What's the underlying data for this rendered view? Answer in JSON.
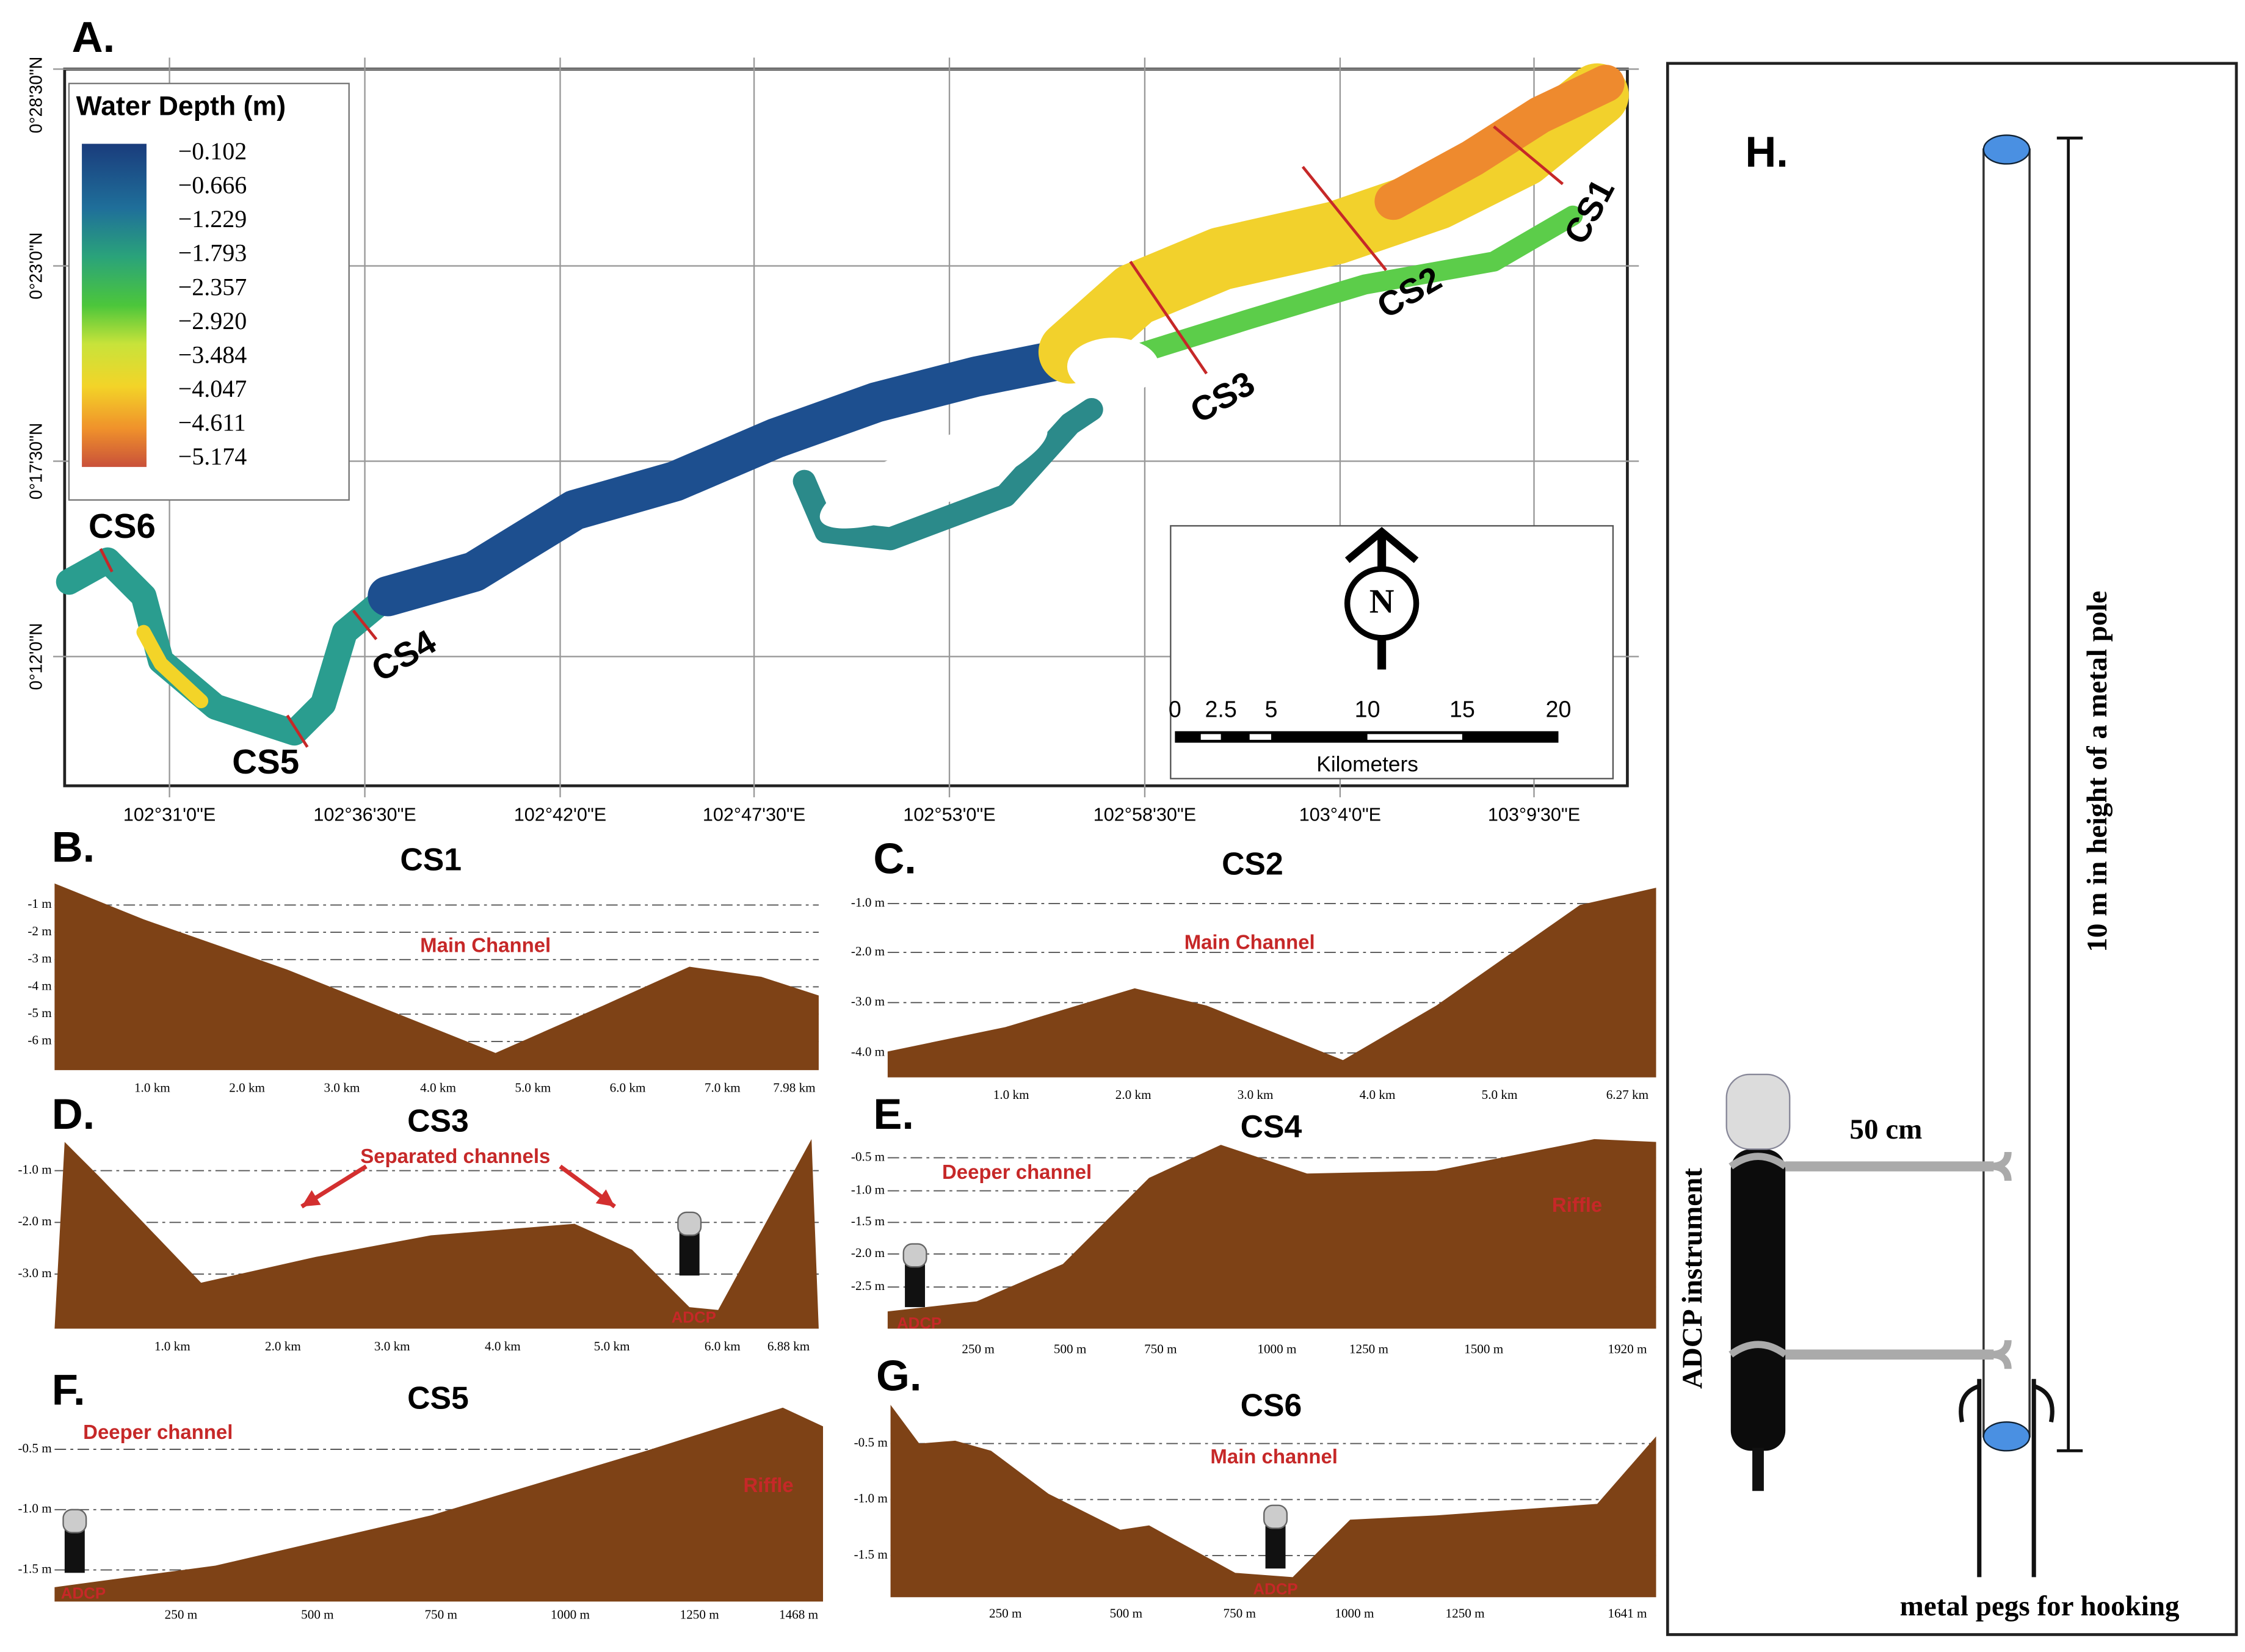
{
  "map": {
    "label": "A.",
    "legend_title": "Water Depth (m)",
    "legend_values": [
      "−0.102",
      "−0.666",
      "−1.229",
      "−1.793",
      "−2.357",
      "−2.920",
      "−3.484",
      "−4.047",
      "−4.611",
      "−5.174"
    ],
    "latitudes": [
      "0°28'30\"N",
      "0°23'0\"N",
      "0°17'30\"N",
      "0°12'0\"N"
    ],
    "longitudes": [
      "102°31'0\"E",
      "102°36'30\"E",
      "102°42'0\"E",
      "102°47'30\"E",
      "102°53'0\"E",
      "102°58'30\"E",
      "103°4'0\"E",
      "103°9'30\"E"
    ],
    "sections": [
      "CS1",
      "CS2",
      "CS3",
      "CS4",
      "CS5",
      "CS6"
    ],
    "north": "N",
    "scale_ticks": [
      "0",
      "2.5",
      "5",
      "10",
      "15",
      "20"
    ],
    "scale_unit": "Kilometers"
  },
  "profiles": [
    {
      "label": "B.",
      "title": "CS1",
      "yticks": [
        "-1 m",
        "-2 m",
        "-3 m",
        "-4 m",
        "-5 m",
        "-6 m"
      ],
      "xticks": [
        "1.0 km",
        "2.0 km",
        "3.0 km",
        "4.0 km",
        "5.0 km",
        "6.0 km",
        "7.0 km",
        "7.98 km"
      ],
      "annotations": [
        "Main Channel"
      ]
    },
    {
      "label": "C.",
      "title": "CS2",
      "yticks": [
        "-1.0 m",
        "-2.0 m",
        "-3.0 m",
        "-4.0 m"
      ],
      "xticks": [
        "1.0 km",
        "2.0 km",
        "3.0 km",
        "4.0 km",
        "5.0 km",
        "6.27 km"
      ],
      "annotations": [
        "Main Channel"
      ]
    },
    {
      "label": "D.",
      "title": "CS3",
      "yticks": [
        "-1.0 m",
        "-2.0 m",
        "-3.0 m"
      ],
      "xticks": [
        "1.0 km",
        "2.0 km",
        "3.0 km",
        "4.0 km",
        "5.0 km",
        "6.0 km",
        "6.88 km"
      ],
      "annotations": [
        "Separated channels",
        "ADCP"
      ]
    },
    {
      "label": "E.",
      "title": "CS4",
      "yticks": [
        "-0.5 m",
        "-1.0 m",
        "-1.5 m",
        "-2.0 m",
        "-2.5 m"
      ],
      "xticks": [
        "250 m",
        "500 m",
        "750 m",
        "1000 m",
        "1250 m",
        "1500 m",
        "1920 m"
      ],
      "annotations": [
        "Deeper channel",
        "Riffle",
        "ADCP"
      ]
    },
    {
      "label": "F.",
      "title": "CS5",
      "yticks": [
        "-0.5 m",
        "-1.0 m",
        "-1.5 m"
      ],
      "xticks": [
        "250 m",
        "500 m",
        "750 m",
        "1000 m",
        "1250 m",
        "1468 m"
      ],
      "annotations": [
        "Deeper channel",
        "Riffle",
        "ADCP"
      ]
    },
    {
      "label": "G.",
      "title": "CS6",
      "yticks": [
        "-0.5 m",
        "-1.0 m",
        "-1.5 m"
      ],
      "xticks": [
        "250 m",
        "500 m",
        "750 m",
        "1000 m",
        "1250 m",
        "1641 m"
      ],
      "annotations": [
        "Main channel",
        "ADCP"
      ]
    }
  ],
  "instrument": {
    "label": "H.",
    "arm_length": "50 cm",
    "pole_height": "10 m in height of a metal pole",
    "device": "ADCP instrument",
    "pegs": "metal pegs for hooking"
  }
}
